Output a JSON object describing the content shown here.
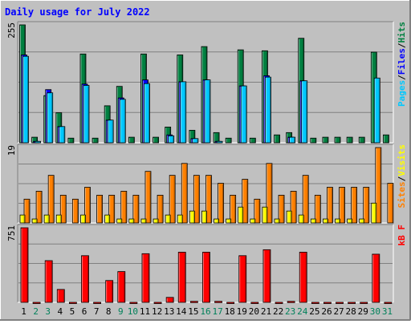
{
  "chart_data": [
    {
      "type": "bar",
      "title": "Daily usage for July 2022",
      "categories": [
        "1",
        "2",
        "3",
        "4",
        "5",
        "6",
        "7",
        "8",
        "9",
        "10",
        "11",
        "12",
        "13",
        "14",
        "15",
        "16",
        "17",
        "18",
        "19",
        "20",
        "21",
        "22",
        "23",
        "24",
        "25",
        "26",
        "27",
        "28",
        "29",
        "30",
        "31"
      ],
      "weekend_days": [
        "2",
        "3",
        "9",
        "10",
        "16",
        "17",
        "23",
        "24",
        "30",
        "31"
      ],
      "ymax_label": "255",
      "ylim": [
        0,
        255
      ],
      "legend": [
        {
          "label": "Pages",
          "color": "#00c8ff"
        },
        {
          "label": "/",
          "color": "#000000"
        },
        {
          "label": "Files",
          "color": "#0000ff"
        },
        {
          "label": "/",
          "color": "#000000"
        },
        {
          "label": "Hits",
          "color": "#008040"
        }
      ],
      "series": [
        {
          "name": "Hits",
          "color": "#008040",
          "values": [
            255,
            12,
            102,
            65,
            10,
            192,
            10,
            80,
            122,
            12,
            192,
            12,
            34,
            190,
            27,
            208,
            22,
            10,
            201,
            10,
            199,
            17,
            22,
            226,
            10,
            12,
            12,
            12,
            12,
            196,
            17
          ]
        },
        {
          "name": "Files",
          "color": "#0000ff",
          "values": [
            190,
            3,
            115,
            35,
            0,
            127,
            0,
            49,
            97,
            0,
            136,
            0,
            17,
            132,
            9,
            136,
            3,
            0,
            123,
            0,
            145,
            0,
            12,
            134,
            0,
            0,
            0,
            0,
            0,
            0,
            0
          ]
        },
        {
          "name": "Pages",
          "color": "#00c8ff",
          "values": [
            187,
            3,
            108,
            35,
            0,
            124,
            0,
            49,
            94,
            0,
            128,
            0,
            15,
            132,
            9,
            136,
            3,
            0,
            123,
            0,
            142,
            0,
            12,
            134,
            0,
            0,
            0,
            0,
            0,
            140,
            0
          ]
        }
      ]
    },
    {
      "type": "bar",
      "ymax_label": "19",
      "ylim": [
        0,
        19
      ],
      "legend": [
        {
          "label": "Sites",
          "color": "#ff8000"
        },
        {
          "label": "/",
          "color": "#000000"
        },
        {
          "label": "Visits",
          "color": "#ffff00"
        }
      ],
      "series": [
        {
          "name": "Visits",
          "color": "#ffff00",
          "values": [
            2,
            1,
            2,
            2,
            0,
            2,
            0,
            2,
            1,
            1,
            1,
            1,
            2,
            2,
            3,
            3,
            1,
            1,
            4,
            1,
            4,
            1,
            3,
            2,
            1,
            1,
            1,
            1,
            1,
            5,
            0
          ]
        },
        {
          "name": "Sites",
          "color": "#ff8000",
          "values": [
            6,
            8,
            12,
            7,
            6,
            9,
            7,
            7,
            8,
            7,
            13,
            7,
            12,
            15,
            12,
            12,
            10,
            7,
            11,
            6,
            15,
            7,
            8,
            12,
            7,
            9,
            9,
            9,
            9,
            19,
            10
          ]
        }
      ]
    },
    {
      "type": "bar",
      "ymax_label": "751",
      "ylim": [
        0,
        751
      ],
      "legend": [
        {
          "label": "kB F",
          "color": "#ff0000"
        }
      ],
      "series": [
        {
          "name": "kB F",
          "color": "#ff0000",
          "values": [
            751,
            0,
            420,
            130,
            0,
            470,
            0,
            220,
            310,
            0,
            490,
            0,
            50,
            505,
            10,
            505,
            10,
            0,
            470,
            0,
            530,
            0,
            10,
            505,
            0,
            0,
            0,
            0,
            0,
            485,
            0
          ]
        }
      ]
    }
  ]
}
